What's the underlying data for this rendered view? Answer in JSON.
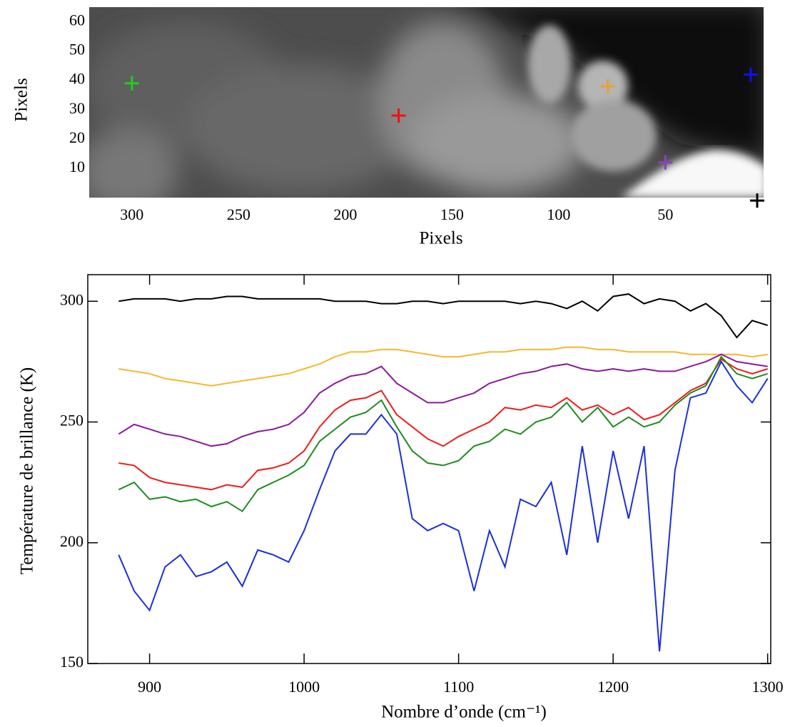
{
  "chart_data": [
    {
      "type": "scatter",
      "xlabel": "Pixels",
      "ylabel": "Pixels",
      "xlim": [
        320,
        4
      ],
      "ylim": [
        0,
        65
      ],
      "xticks": [
        300,
        250,
        200,
        150,
        100,
        50
      ],
      "yticks": [
        10,
        20,
        30,
        40,
        50,
        60
      ],
      "x": [
        300,
        175,
        77,
        50,
        10,
        7
      ],
      "y": [
        39,
        28,
        38,
        12,
        42,
        -1
      ],
      "colors": [
        "#22cc22",
        "#ee1111",
        "#e8a030",
        "#8844bb",
        "#1111ee",
        "#000000"
      ]
    },
    {
      "type": "line",
      "xlabel": "Nombre d’onde (cm⁻¹)",
      "ylabel": "Température de brillance (K)",
      "xlim": [
        860,
        1302
      ],
      "ylim": [
        150,
        311
      ],
      "xticks": [
        900,
        1000,
        1100,
        1200,
        1300
      ],
      "yticks": [
        150,
        200,
        250,
        300
      ],
      "x": [
        880,
        890,
        900,
        910,
        920,
        930,
        940,
        950,
        960,
        970,
        980,
        990,
        1000,
        1010,
        1020,
        1030,
        1040,
        1050,
        1060,
        1070,
        1080,
        1090,
        1100,
        1110,
        1120,
        1130,
        1140,
        1150,
        1160,
        1170,
        1180,
        1190,
        1200,
        1210,
        1220,
        1230,
        1240,
        1250,
        1260,
        1270,
        1280,
        1290,
        1300
      ],
      "series": [
        {
          "color": "#000000",
          "values": [
            300,
            301,
            301,
            301,
            300,
            301,
            301,
            302,
            302,
            301,
            301,
            301,
            301,
            301,
            300,
            300,
            300,
            299,
            299,
            300,
            300,
            299,
            300,
            300,
            300,
            300,
            299,
            300,
            299,
            297,
            300,
            296,
            302,
            303,
            299,
            301,
            300,
            296,
            299,
            294,
            285,
            292,
            290
          ]
        },
        {
          "color": "#f5b82e",
          "values": [
            272,
            271,
            270,
            268,
            267,
            266,
            265,
            266,
            267,
            268,
            269,
            270,
            272,
            274,
            277,
            279,
            279,
            280,
            280,
            279,
            278,
            277,
            277,
            278,
            279,
            279,
            280,
            280,
            280,
            281,
            281,
            280,
            280,
            279,
            279,
            279,
            279,
            278,
            278,
            278,
            278,
            277,
            278
          ]
        },
        {
          "color": "#8b1a9b",
          "values": [
            245,
            249,
            247,
            245,
            244,
            242,
            240,
            241,
            244,
            246,
            247,
            249,
            254,
            262,
            266,
            269,
            270,
            273,
            266,
            262,
            258,
            258,
            260,
            262,
            266,
            268,
            270,
            271,
            273,
            274,
            272,
            271,
            272,
            271,
            272,
            271,
            271,
            273,
            275,
            278,
            275,
            274,
            273
          ]
        },
        {
          "color": "#ee1c1c",
          "values": [
            233,
            232,
            227,
            225,
            224,
            223,
            222,
            224,
            223,
            230,
            231,
            233,
            238,
            248,
            255,
            259,
            260,
            263,
            253,
            248,
            243,
            240,
            244,
            247,
            250,
            256,
            255,
            257,
            256,
            260,
            255,
            257,
            253,
            256,
            251,
            253,
            258,
            263,
            266,
            276,
            272,
            270,
            272
          ]
        },
        {
          "color": "#1e8c1e",
          "values": [
            222,
            225,
            218,
            219,
            217,
            218,
            215,
            217,
            213,
            222,
            225,
            228,
            232,
            242,
            247,
            252,
            254,
            259,
            248,
            238,
            233,
            232,
            234,
            240,
            242,
            247,
            245,
            250,
            252,
            258,
            250,
            256,
            248,
            252,
            248,
            250,
            257,
            262,
            265,
            277,
            270,
            268,
            270
          ]
        },
        {
          "color": "#1c2fdc",
          "values": [
            195,
            180,
            172,
            190,
            195,
            186,
            188,
            192,
            182,
            197,
            195,
            192,
            205,
            222,
            238,
            245,
            245,
            253,
            245,
            210,
            205,
            208,
            205,
            180,
            205,
            190,
            218,
            215,
            225,
            195,
            240,
            200,
            238,
            210,
            240,
            155,
            230,
            260,
            262,
            275,
            265,
            258,
            268
          ]
        }
      ]
    }
  ]
}
